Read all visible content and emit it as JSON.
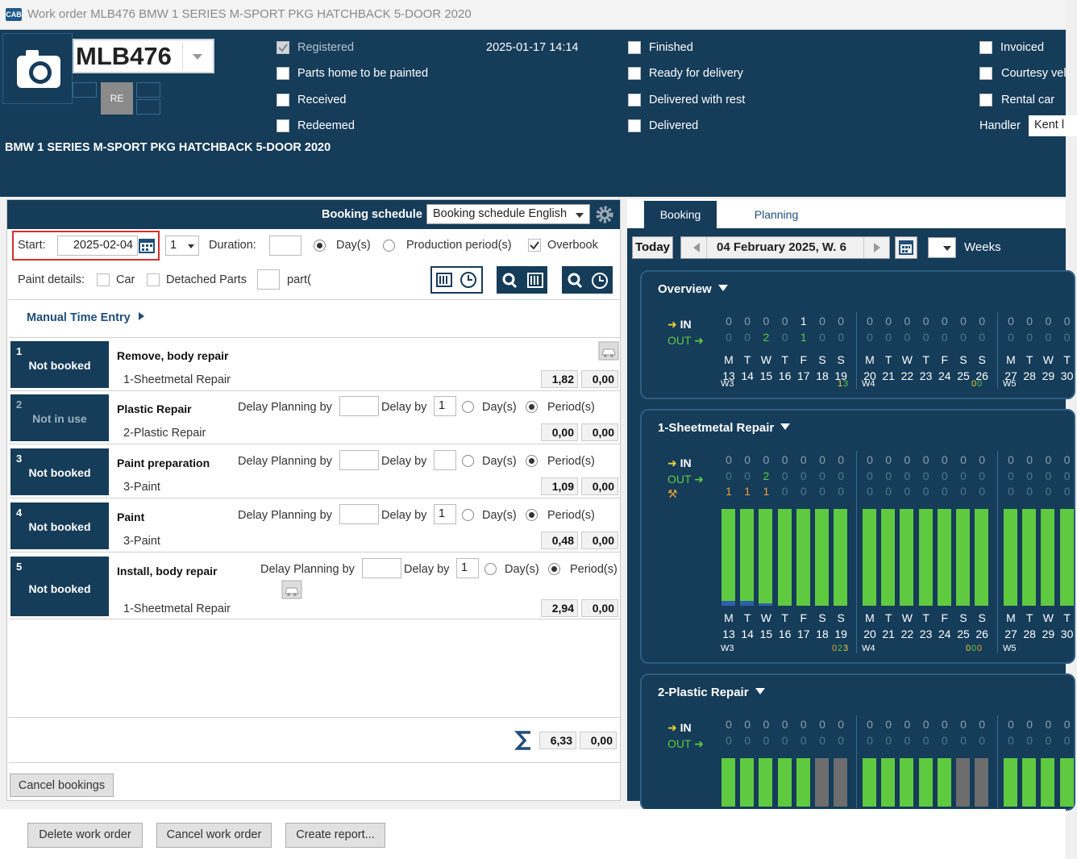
{
  "window": {
    "title": "Work order MLB476 BMW 1 SERIES M-SPORT PKG HATCHBACK 5-DOOR 2020",
    "app_icon": "CAB"
  },
  "header": {
    "reg": "MLB476",
    "re_label": "RE",
    "car_name": "BMW 1 SERIES M-SPORT PKG HATCHBACK 5-DOOR 2020",
    "timestamp": "2025-01-17 14:14",
    "checks_col1": [
      "Registered",
      "Parts home to be painted",
      "Received",
      "Redeemed"
    ],
    "checks_col2": [
      "Finished",
      "Ready for delivery",
      "Delivered with rest",
      "Delivered"
    ],
    "checks_col3": [
      "Invoiced",
      "Courtesy vel",
      "Rental car"
    ],
    "handler_label": "Handler",
    "handler_value": "Kent l"
  },
  "booking": {
    "schedule_label": "Booking schedule",
    "schedule_value": "Booking schedule English",
    "start_label": "Start:",
    "start_value": "2025-02-04",
    "count_value": "1",
    "duration_label": "Duration:",
    "days_label": "Day(s)",
    "production_label": "Production period(s)",
    "overbook_label": "Overbook",
    "paint_details_label": "Paint details:",
    "car_label": "Car",
    "detached_label": "Detached Parts",
    "part_label": "part(",
    "manual_time": "Manual Time Entry",
    "delay_planning": "Delay Planning by",
    "delay_by": "Delay by",
    "days": "Day(s)",
    "periods": "Period(s)",
    "rows": [
      {
        "num": "1",
        "status": "Not booked",
        "title": "Remove, body repair",
        "sub": "1-Sheetmetal Repair",
        "v1": "1,82",
        "v2": "0,00",
        "delay": ""
      },
      {
        "num": "2",
        "status": "Not in use",
        "title": "Plastic Repair",
        "sub": "2-Plastic Repair",
        "v1": "0,00",
        "v2": "0,00",
        "delay": "1"
      },
      {
        "num": "3",
        "status": "Not booked",
        "title": "Paint preparation",
        "sub": "3-Paint",
        "v1": "1,09",
        "v2": "0,00",
        "delay": ""
      },
      {
        "num": "4",
        "status": "Not booked",
        "title": "Paint",
        "sub": "3-Paint",
        "v1": "0,48",
        "v2": "0,00",
        "delay": "1"
      },
      {
        "num": "5",
        "status": "Not booked",
        "title": "Install, body repair",
        "sub": "1-Sheetmetal Repair",
        "v1": "2,94",
        "v2": "0,00",
        "delay": "1"
      }
    ],
    "total_v1": "6,33",
    "total_v2": "0,00",
    "cancel_bookings": "Cancel bookings"
  },
  "calendar": {
    "tabs": [
      "Booking",
      "Planning"
    ],
    "today": "Today",
    "date": "04 February 2025, W. 6",
    "weeks": "Weeks",
    "in": "IN",
    "out": "OUT",
    "overview": "Overview",
    "sheetmetal": "1-Sheetmetal Repair",
    "plastic": "2-Plastic Repair",
    "days": [
      "M",
      "T",
      "W",
      "T",
      "F",
      "S",
      "S",
      "M",
      "T",
      "W",
      "T",
      "F",
      "S",
      "S",
      "M",
      "T",
      "W",
      "T"
    ],
    "dates": [
      "13",
      "14",
      "15",
      "16",
      "17",
      "18",
      "19",
      "20",
      "21",
      "22",
      "23",
      "24",
      "25",
      "26",
      "27",
      "28",
      "29",
      "30"
    ],
    "weeknums": [
      "W3",
      "W4",
      "W5"
    ],
    "ov_in": [
      "0",
      "0",
      "0",
      "0",
      "1",
      "0",
      "0",
      "0",
      "0",
      "0",
      "0",
      "0",
      "0",
      "0",
      "0",
      "0",
      "0",
      "0"
    ],
    "ov_out": [
      "0",
      "0",
      "2",
      "0",
      "1",
      "0",
      "0",
      "0",
      "0",
      "0",
      "0",
      "0",
      "0",
      "0",
      "0",
      "0",
      "0",
      "0"
    ],
    "ov_foot": [
      "1",
      "3",
      "0",
      "0"
    ],
    "sm_in": [
      "0",
      "0",
      "0",
      "0",
      "0",
      "0",
      "0",
      "0",
      "0",
      "0",
      "0",
      "0",
      "0",
      "0",
      "0",
      "0",
      "0",
      "0"
    ],
    "sm_out": [
      "0",
      "0",
      "2",
      "0",
      "0",
      "0",
      "0",
      "0",
      "0",
      "0",
      "0",
      "0",
      "0",
      "0",
      "0",
      "0",
      "0",
      "0"
    ],
    "sm_extra": [
      "1",
      "1",
      "1",
      "0",
      "0",
      "0",
      "0",
      "0",
      "0",
      "0",
      "0",
      "0",
      "0",
      "0",
      "0",
      "0",
      "0",
      "0"
    ],
    "sm_foot": [
      "0",
      "2",
      "3",
      "0",
      "0",
      "0"
    ],
    "pl_in": [
      "0",
      "0",
      "0",
      "0",
      "0",
      "0",
      "0",
      "0",
      "0",
      "0",
      "0",
      "0",
      "0",
      "0",
      "0",
      "0",
      "0",
      "0"
    ],
    "pl_out": [
      "0",
      "0",
      "0",
      "0",
      "0",
      "0",
      "0",
      "0",
      "0",
      "0",
      "0",
      "0",
      "0",
      "0",
      "0",
      "0",
      "0",
      "0"
    ]
  },
  "footer": {
    "delete": "Delete work order",
    "cancel": "Cancel work order",
    "report": "Create report..."
  }
}
